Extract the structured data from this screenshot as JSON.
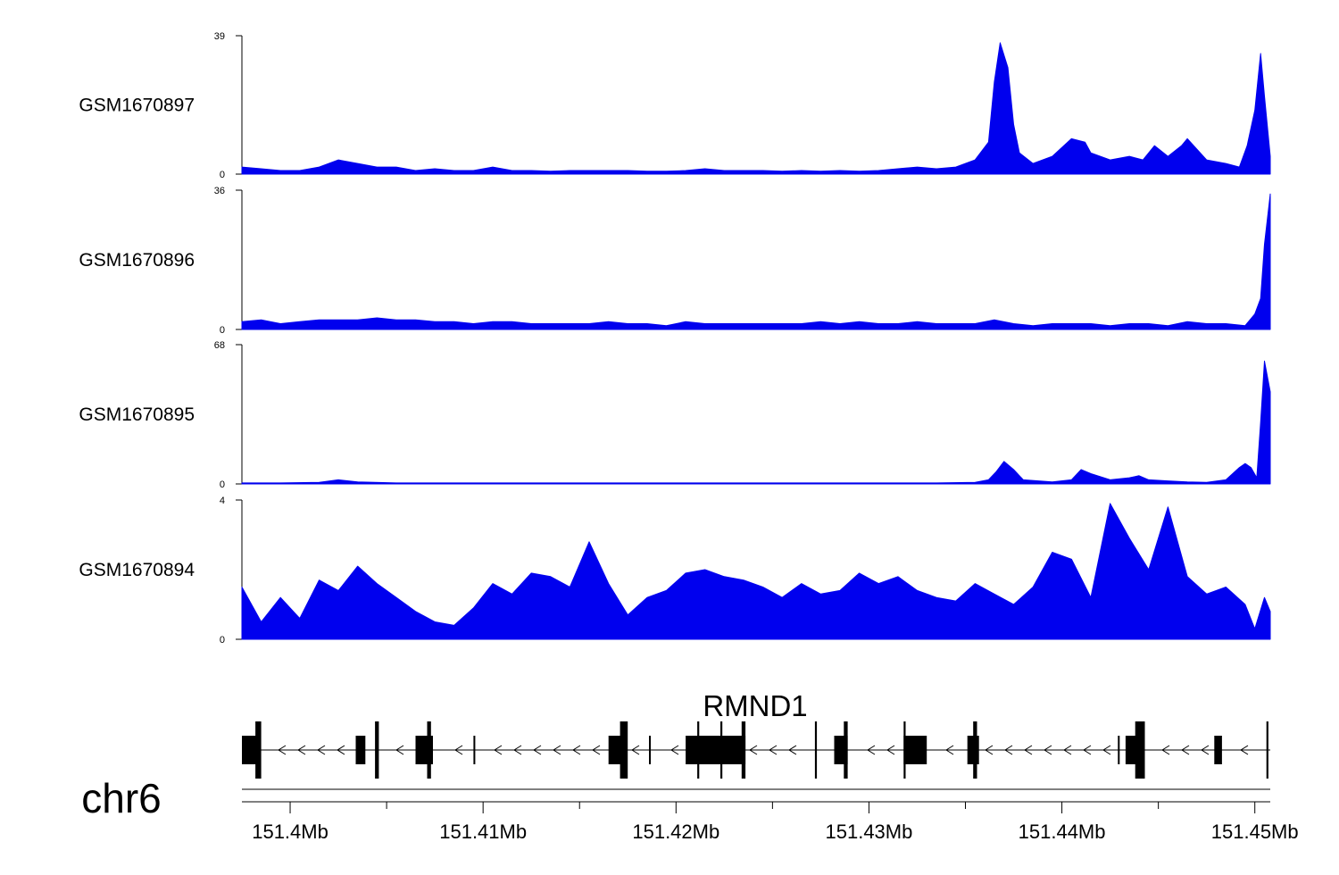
{
  "chart_data": {
    "type": "area",
    "chromosome": "chr6",
    "x_range_mb": [
      151.3975,
      151.4508
    ],
    "x_ticks": [
      {
        "value": 151.4,
        "label": "151.4Mb"
      },
      {
        "value": 151.41,
        "label": "151.41Mb"
      },
      {
        "value": 151.42,
        "label": "151.42Mb"
      },
      {
        "value": 151.43,
        "label": "151.43Mb"
      },
      {
        "value": 151.44,
        "label": "151.44Mb"
      },
      {
        "value": 151.45,
        "label": "151.45Mb"
      }
    ],
    "minor_tick_values": [
      151.405,
      151.415,
      151.425,
      151.435,
      151.445
    ],
    "fill_color": "#0000ee",
    "series": [
      {
        "name": "GSM1670897",
        "ymin_label": "0",
        "ymax_label": "39",
        "ymax": 39,
        "x": [
          151.3975,
          151.3985,
          151.3995,
          151.4005,
          151.4015,
          151.4025,
          151.4035,
          151.4045,
          151.4055,
          151.4065,
          151.4075,
          151.4085,
          151.4095,
          151.4105,
          151.4115,
          151.4125,
          151.4135,
          151.4145,
          151.4155,
          151.4165,
          151.4175,
          151.4185,
          151.4195,
          151.4205,
          151.4215,
          151.4225,
          151.4235,
          151.4245,
          151.4255,
          151.4265,
          151.4275,
          151.4285,
          151.4295,
          151.4305,
          151.4315,
          151.4325,
          151.4335,
          151.4345,
          151.4355,
          151.4362,
          151.4365,
          151.4368,
          151.4372,
          151.4375,
          151.4378,
          151.4385,
          151.4395,
          151.4405,
          151.4412,
          151.4415,
          151.4425,
          151.4435,
          151.4442,
          151.4448,
          151.4455,
          151.4462,
          151.4465,
          151.4475,
          151.4485,
          151.4492,
          151.4496,
          151.45,
          151.4503,
          151.4505,
          151.4508
        ],
        "values": [
          2,
          1.5,
          1,
          1,
          2,
          4,
          3,
          2,
          2,
          1,
          1.5,
          1,
          1,
          2,
          1,
          1,
          0.8,
          1,
          1,
          1,
          1,
          0.8,
          0.8,
          1,
          1.5,
          1,
          1,
          1,
          0.8,
          1,
          0.8,
          1,
          0.8,
          1,
          1.5,
          2,
          1.5,
          2,
          4,
          9,
          26,
          37,
          30,
          14,
          6,
          3,
          5,
          10,
          9,
          6,
          4,
          5,
          4,
          8,
          5,
          8,
          10,
          4,
          3,
          2,
          8,
          18,
          34,
          22,
          5
        ]
      },
      {
        "name": "GSM1670896",
        "ymin_label": "0",
        "ymax_label": "36",
        "ymax": 36,
        "x": [
          151.3975,
          151.3985,
          151.3995,
          151.4005,
          151.4015,
          151.4025,
          151.4035,
          151.4045,
          151.4055,
          151.4065,
          151.4075,
          151.4085,
          151.4095,
          151.4105,
          151.4115,
          151.4125,
          151.4135,
          151.4145,
          151.4155,
          151.4165,
          151.4175,
          151.4185,
          151.4195,
          151.4205,
          151.4215,
          151.4225,
          151.4235,
          151.4245,
          151.4255,
          151.4265,
          151.4275,
          151.4285,
          151.4295,
          151.4305,
          151.4315,
          151.4325,
          151.4335,
          151.4345,
          151.4355,
          151.4365,
          151.4375,
          151.4385,
          151.4395,
          151.4405,
          151.4415,
          151.4425,
          151.4435,
          151.4445,
          151.4455,
          151.4465,
          151.4475,
          151.4485,
          151.4495,
          151.45,
          151.4503,
          151.4505,
          151.4508
        ],
        "values": [
          2,
          2.5,
          1.5,
          2,
          2.5,
          2.5,
          2.5,
          3,
          2.5,
          2.5,
          2,
          2,
          1.5,
          2,
          2,
          1.5,
          1.5,
          1.5,
          1.5,
          2,
          1.5,
          1.5,
          1,
          2,
          1.5,
          1.5,
          1.5,
          1.5,
          1.5,
          1.5,
          2,
          1.5,
          2,
          1.5,
          1.5,
          2,
          1.5,
          1.5,
          1.5,
          2.5,
          1.5,
          1,
          1.5,
          1.5,
          1.5,
          1,
          1.5,
          1.5,
          1,
          2,
          1.5,
          1.5,
          1,
          4,
          8,
          22,
          35
        ]
      },
      {
        "name": "GSM1670895",
        "ymin_label": "0",
        "ymax_label": "68",
        "ymax": 68,
        "x": [
          151.3975,
          151.3995,
          151.4015,
          151.4025,
          151.4035,
          151.4055,
          151.4095,
          151.4135,
          151.4175,
          151.4215,
          151.4255,
          151.4295,
          151.4335,
          151.4355,
          151.4362,
          151.4366,
          151.437,
          151.4375,
          151.438,
          151.4395,
          151.4405,
          151.441,
          151.4415,
          151.4425,
          151.4435,
          151.444,
          151.4445,
          151.4455,
          151.4465,
          151.4475,
          151.4485,
          151.4492,
          151.4495,
          151.4498,
          151.4501,
          151.4503,
          151.4505,
          151.4508
        ],
        "values": [
          0.5,
          0.5,
          0.8,
          2,
          1,
          0.5,
          0.5,
          0.5,
          0.5,
          0.5,
          0.5,
          0.5,
          0.5,
          0.8,
          2,
          6,
          11,
          7,
          2,
          1,
          2,
          7,
          5,
          2,
          3,
          4,
          2,
          1.5,
          1,
          0.8,
          2,
          8,
          10,
          8,
          3,
          30,
          60,
          45
        ]
      },
      {
        "name": "GSM1670894",
        "ymin_label": "0",
        "ymax_label": "4",
        "ymax": 4,
        "x": [
          151.3975,
          151.3985,
          151.3995,
          151.4005,
          151.4015,
          151.4025,
          151.4035,
          151.4045,
          151.4055,
          151.4065,
          151.4075,
          151.4085,
          151.4095,
          151.4105,
          151.4115,
          151.4125,
          151.4135,
          151.4145,
          151.4155,
          151.4165,
          151.4175,
          151.4185,
          151.4195,
          151.4205,
          151.4215,
          151.4225,
          151.4235,
          151.4245,
          151.4255,
          151.4265,
          151.4275,
          151.4285,
          151.4295,
          151.4305,
          151.4315,
          151.4325,
          151.4335,
          151.4345,
          151.4355,
          151.4365,
          151.4375,
          151.4385,
          151.4395,
          151.4405,
          151.4415,
          151.4425,
          151.4435,
          151.4445,
          151.4455,
          151.4465,
          151.4475,
          151.4485,
          151.4495,
          151.45,
          151.4505,
          151.4508
        ],
        "values": [
          1.5,
          0.5,
          1.2,
          0.6,
          1.7,
          1.4,
          2.1,
          1.6,
          1.2,
          0.8,
          0.5,
          0.4,
          0.9,
          1.6,
          1.3,
          1.9,
          1.8,
          1.5,
          2.8,
          1.6,
          0.7,
          1.2,
          1.4,
          1.9,
          2.0,
          1.8,
          1.7,
          1.5,
          1.2,
          1.6,
          1.3,
          1.4,
          1.9,
          1.6,
          1.8,
          1.4,
          1.2,
          1.1,
          1.6,
          1.3,
          1.0,
          1.5,
          2.5,
          2.3,
          1.2,
          3.9,
          2.9,
          2.0,
          3.8,
          1.8,
          1.3,
          1.5,
          1.0,
          0.3,
          1.2,
          0.8
        ]
      }
    ],
    "gene": {
      "name": "RMND1",
      "strand": "-",
      "start": 151.3975,
      "end": 151.4508,
      "exons": [
        {
          "start": 151.3975,
          "end": 151.3983,
          "height": "medium"
        },
        {
          "start": 151.3982,
          "end": 151.3985,
          "height": "tall"
        },
        {
          "start": 151.4034,
          "end": 151.4039,
          "height": "medium"
        },
        {
          "start": 151.4044,
          "end": 151.4046,
          "height": "tall"
        },
        {
          "start": 151.4065,
          "end": 151.4074,
          "height": "medium"
        },
        {
          "start": 151.4071,
          "end": 151.4073,
          "height": "tall"
        },
        {
          "start": 151.4095,
          "end": 151.4096,
          "height": "thin"
        },
        {
          "start": 151.4165,
          "end": 151.4174,
          "height": "medium"
        },
        {
          "start": 151.4171,
          "end": 151.4175,
          "height": "tall"
        },
        {
          "start": 151.4186,
          "end": 151.4187,
          "height": "thin"
        },
        {
          "start": 151.4205,
          "end": 151.4236,
          "height": "medium"
        },
        {
          "start": 151.4211,
          "end": 151.4212,
          "height": "tall"
        },
        {
          "start": 151.4223,
          "end": 151.4224,
          "height": "tall"
        },
        {
          "start": 151.4234,
          "end": 151.4236,
          "height": "tall"
        },
        {
          "start": 151.4272,
          "end": 151.4273,
          "height": "tall"
        },
        {
          "start": 151.4282,
          "end": 151.4289,
          "height": "medium"
        },
        {
          "start": 151.4287,
          "end": 151.4289,
          "height": "tall"
        },
        {
          "start": 151.4318,
          "end": 151.433,
          "height": "medium"
        },
        {
          "start": 151.4318,
          "end": 151.4319,
          "height": "tall"
        },
        {
          "start": 151.4351,
          "end": 151.4357,
          "height": "medium"
        },
        {
          "start": 151.4354,
          "end": 151.4356,
          "height": "tall"
        },
        {
          "start": 151.4429,
          "end": 151.443,
          "height": "thin"
        },
        {
          "start": 151.4433,
          "end": 151.4443,
          "height": "medium"
        },
        {
          "start": 151.4438,
          "end": 151.4443,
          "height": "tall"
        },
        {
          "start": 151.4479,
          "end": 151.4483,
          "height": "medium"
        },
        {
          "start": 151.4506,
          "end": 151.4507,
          "height": "tall"
        }
      ]
    }
  }
}
